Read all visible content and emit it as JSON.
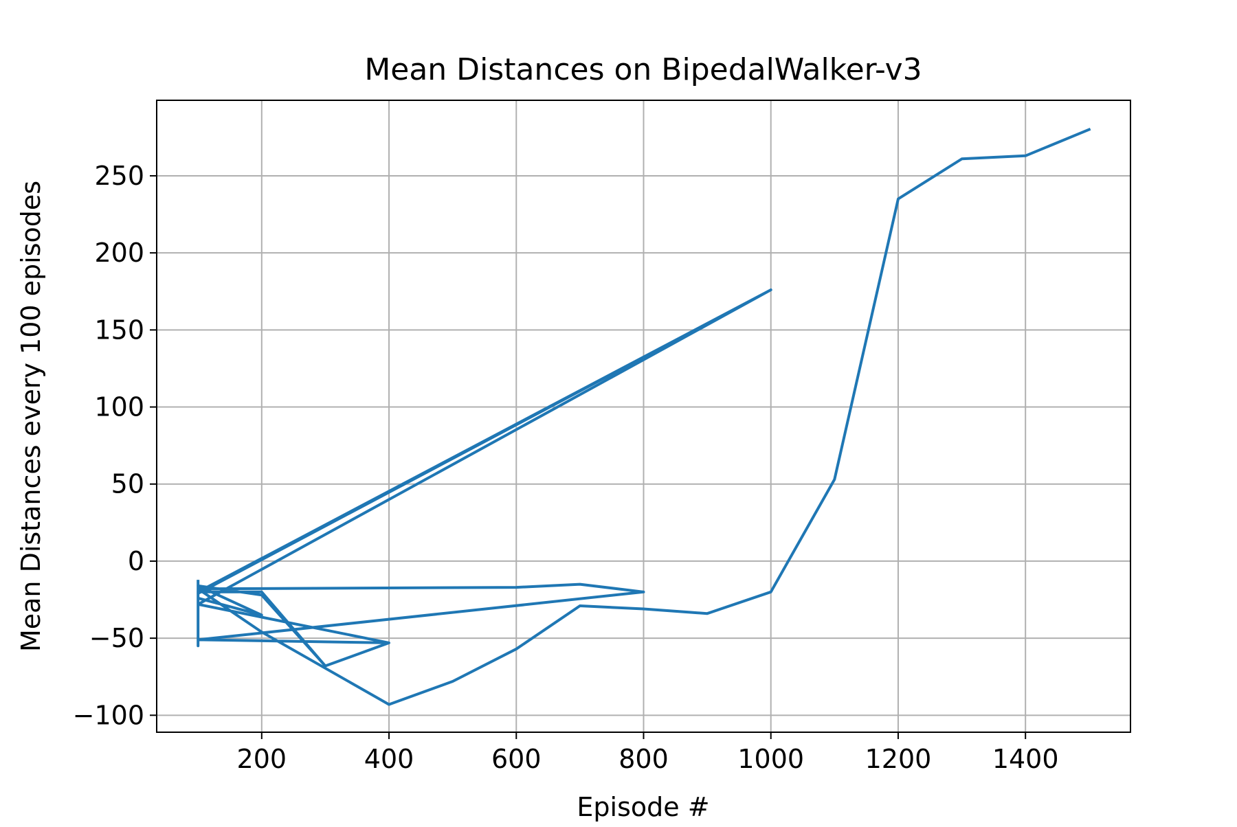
{
  "chart_data": {
    "type": "line",
    "title": "Mean Distances on BipedalWalker-v3",
    "xlabel": "Episode #",
    "ylabel": "Mean Distances every 100 episodes",
    "xlim": [
      35,
      1565
    ],
    "ylim": [
      -111,
      299
    ],
    "xticks": [
      {
        "value": 200,
        "label": "200"
      },
      {
        "value": 400,
        "label": "400"
      },
      {
        "value": 600,
        "label": "600"
      },
      {
        "value": 800,
        "label": "800"
      },
      {
        "value": 1000,
        "label": "1000"
      },
      {
        "value": 1200,
        "label": "1200"
      },
      {
        "value": 1400,
        "label": "1400"
      }
    ],
    "yticks": [
      {
        "value": -100,
        "label": "−100"
      },
      {
        "value": -50,
        "label": "−50"
      },
      {
        "value": 0,
        "label": "0"
      },
      {
        "value": 50,
        "label": "50"
      },
      {
        "value": 100,
        "label": "100"
      },
      {
        "value": 150,
        "label": "150"
      },
      {
        "value": 200,
        "label": "200"
      },
      {
        "value": 250,
        "label": "250"
      }
    ],
    "grid": true,
    "legend": "none",
    "series": [
      {
        "color": "#1f77b4",
        "x": [
          100,
          100,
          100,
          100,
          100,
          100,
          200,
          100,
          200,
          300,
          400,
          100,
          1000,
          100,
          1000,
          100,
          200,
          300,
          400,
          100,
          800,
          700,
          600,
          100,
          200,
          400,
          500,
          600,
          700,
          800,
          900,
          1000,
          1100,
          1200,
          1300,
          1400,
          1500
        ],
        "y": [
          -13,
          -55,
          -20,
          -51,
          -31,
          -24,
          -35,
          -16,
          -22,
          -68,
          -53,
          -28,
          176,
          -21,
          176,
          -20,
          -20,
          -68,
          -53,
          -51,
          -20,
          -15,
          -17,
          -18,
          -46,
          -93,
          -78,
          -57,
          -29,
          -31,
          -34,
          -20,
          53,
          235,
          261,
          263,
          280
        ]
      }
    ]
  }
}
